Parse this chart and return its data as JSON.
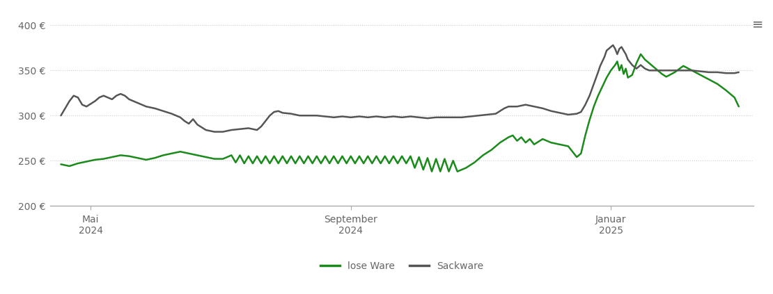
{
  "background_color": "#ffffff",
  "lose_ware_color": "#1a8a1a",
  "sackware_color": "#555555",
  "tick_color": "#666666",
  "grid_color": "#cccccc",
  "ylim": [
    200,
    415
  ],
  "yticks": [
    200,
    250,
    300,
    350,
    400
  ],
  "ytick_labels": [
    "200 €",
    "250 €",
    "300 €",
    "350 €",
    "400 €"
  ],
  "legend_labels": [
    "lose Ware",
    "Sackware"
  ],
  "line_width": 1.8,
  "lose_ware_data": [
    [
      0,
      246
    ],
    [
      4,
      244
    ],
    [
      8,
      247
    ],
    [
      12,
      249
    ],
    [
      16,
      251
    ],
    [
      20,
      252
    ],
    [
      24,
      254
    ],
    [
      28,
      256
    ],
    [
      32,
      255
    ],
    [
      36,
      253
    ],
    [
      40,
      251
    ],
    [
      44,
      253
    ],
    [
      48,
      256
    ],
    [
      52,
      258
    ],
    [
      56,
      260
    ],
    [
      60,
      258
    ],
    [
      64,
      256
    ],
    [
      68,
      254
    ],
    [
      72,
      252
    ],
    [
      76,
      252
    ],
    [
      80,
      256
    ],
    [
      82,
      248
    ],
    [
      84,
      256
    ],
    [
      86,
      247
    ],
    [
      88,
      255
    ],
    [
      90,
      247
    ],
    [
      92,
      255
    ],
    [
      94,
      247
    ],
    [
      96,
      255
    ],
    [
      98,
      247
    ],
    [
      100,
      255
    ],
    [
      102,
      247
    ],
    [
      104,
      255
    ],
    [
      106,
      247
    ],
    [
      108,
      255
    ],
    [
      110,
      247
    ],
    [
      112,
      255
    ],
    [
      114,
      247
    ],
    [
      116,
      255
    ],
    [
      118,
      247
    ],
    [
      120,
      255
    ],
    [
      122,
      247
    ],
    [
      124,
      255
    ],
    [
      126,
      247
    ],
    [
      128,
      255
    ],
    [
      130,
      247
    ],
    [
      132,
      255
    ],
    [
      134,
      247
    ],
    [
      136,
      255
    ],
    [
      138,
      247
    ],
    [
      140,
      255
    ],
    [
      142,
      247
    ],
    [
      144,
      255
    ],
    [
      146,
      247
    ],
    [
      148,
      255
    ],
    [
      150,
      247
    ],
    [
      152,
      255
    ],
    [
      154,
      247
    ],
    [
      156,
      255
    ],
    [
      158,
      247
    ],
    [
      160,
      255
    ],
    [
      162,
      247
    ],
    [
      164,
      255
    ],
    [
      166,
      242
    ],
    [
      168,
      254
    ],
    [
      170,
      240
    ],
    [
      172,
      253
    ],
    [
      174,
      238
    ],
    [
      176,
      252
    ],
    [
      178,
      238
    ],
    [
      180,
      252
    ],
    [
      182,
      238
    ],
    [
      184,
      250
    ],
    [
      186,
      238
    ],
    [
      188,
      240
    ],
    [
      190,
      242
    ],
    [
      194,
      248
    ],
    [
      198,
      256
    ],
    [
      202,
      262
    ],
    [
      206,
      270
    ],
    [
      210,
      276
    ],
    [
      212,
      278
    ],
    [
      214,
      272
    ],
    [
      216,
      276
    ],
    [
      218,
      270
    ],
    [
      220,
      274
    ],
    [
      222,
      268
    ],
    [
      226,
      274
    ],
    [
      230,
      270
    ],
    [
      234,
      268
    ],
    [
      238,
      266
    ],
    [
      240,
      260
    ],
    [
      242,
      254
    ],
    [
      244,
      258
    ],
    [
      246,
      278
    ],
    [
      248,
      295
    ],
    [
      250,
      310
    ],
    [
      252,
      322
    ],
    [
      254,
      332
    ],
    [
      256,
      342
    ],
    [
      258,
      350
    ],
    [
      260,
      356
    ],
    [
      261,
      360
    ],
    [
      262,
      350
    ],
    [
      263,
      356
    ],
    [
      264,
      346
    ],
    [
      265,
      352
    ],
    [
      266,
      342
    ],
    [
      268,
      345
    ],
    [
      270,
      358
    ],
    [
      272,
      368
    ],
    [
      274,
      362
    ],
    [
      276,
      358
    ],
    [
      278,
      354
    ],
    [
      280,
      350
    ],
    [
      282,
      346
    ],
    [
      284,
      343
    ],
    [
      288,
      348
    ],
    [
      292,
      355
    ],
    [
      296,
      350
    ],
    [
      300,
      345
    ],
    [
      304,
      340
    ],
    [
      308,
      335
    ],
    [
      312,
      328
    ],
    [
      316,
      320
    ],
    [
      318,
      310
    ]
  ],
  "sackware_data": [
    [
      0,
      300
    ],
    [
      2,
      308
    ],
    [
      4,
      316
    ],
    [
      6,
      322
    ],
    [
      8,
      320
    ],
    [
      10,
      312
    ],
    [
      12,
      310
    ],
    [
      14,
      313
    ],
    [
      16,
      316
    ],
    [
      18,
      320
    ],
    [
      20,
      322
    ],
    [
      22,
      320
    ],
    [
      24,
      318
    ],
    [
      26,
      322
    ],
    [
      28,
      324
    ],
    [
      30,
      322
    ],
    [
      32,
      318
    ],
    [
      36,
      314
    ],
    [
      40,
      310
    ],
    [
      44,
      308
    ],
    [
      48,
      305
    ],
    [
      52,
      302
    ],
    [
      56,
      298
    ],
    [
      58,
      294
    ],
    [
      60,
      291
    ],
    [
      62,
      296
    ],
    [
      64,
      290
    ],
    [
      66,
      287
    ],
    [
      68,
      284
    ],
    [
      72,
      282
    ],
    [
      76,
      282
    ],
    [
      80,
      284
    ],
    [
      84,
      285
    ],
    [
      88,
      286
    ],
    [
      92,
      284
    ],
    [
      94,
      288
    ],
    [
      96,
      294
    ],
    [
      98,
      300
    ],
    [
      100,
      304
    ],
    [
      102,
      305
    ],
    [
      104,
      303
    ],
    [
      108,
      302
    ],
    [
      112,
      300
    ],
    [
      116,
      300
    ],
    [
      120,
      300
    ],
    [
      124,
      299
    ],
    [
      128,
      298
    ],
    [
      132,
      299
    ],
    [
      136,
      298
    ],
    [
      140,
      299
    ],
    [
      144,
      298
    ],
    [
      148,
      299
    ],
    [
      152,
      298
    ],
    [
      156,
      299
    ],
    [
      160,
      298
    ],
    [
      164,
      299
    ],
    [
      168,
      298
    ],
    [
      172,
      297
    ],
    [
      176,
      298
    ],
    [
      180,
      298
    ],
    [
      184,
      298
    ],
    [
      188,
      298
    ],
    [
      192,
      299
    ],
    [
      196,
      300
    ],
    [
      200,
      301
    ],
    [
      204,
      302
    ],
    [
      206,
      305
    ],
    [
      208,
      308
    ],
    [
      210,
      310
    ],
    [
      214,
      310
    ],
    [
      218,
      312
    ],
    [
      222,
      310
    ],
    [
      226,
      308
    ],
    [
      230,
      305
    ],
    [
      234,
      303
    ],
    [
      238,
      301
    ],
    [
      242,
      302
    ],
    [
      244,
      304
    ],
    [
      246,
      312
    ],
    [
      248,
      322
    ],
    [
      250,
      335
    ],
    [
      252,
      348
    ],
    [
      253,
      355
    ],
    [
      254,
      360
    ],
    [
      255,
      365
    ],
    [
      256,
      372
    ],
    [
      257,
      374
    ],
    [
      258,
      376
    ],
    [
      259,
      378
    ],
    [
      260,
      374
    ],
    [
      261,
      368
    ],
    [
      262,
      374
    ],
    [
      263,
      376
    ],
    [
      264,
      372
    ],
    [
      265,
      368
    ],
    [
      266,
      362
    ],
    [
      268,
      356
    ],
    [
      270,
      352
    ],
    [
      272,
      356
    ],
    [
      274,
      352
    ],
    [
      276,
      350
    ],
    [
      278,
      350
    ],
    [
      280,
      350
    ],
    [
      284,
      350
    ],
    [
      288,
      350
    ],
    [
      292,
      350
    ],
    [
      296,
      350
    ],
    [
      300,
      349
    ],
    [
      304,
      348
    ],
    [
      308,
      348
    ],
    [
      312,
      347
    ],
    [
      316,
      347
    ],
    [
      318,
      348
    ]
  ],
  "x_tick_positions_days": [
    14,
    136,
    258
  ],
  "x_tick_labels": [
    "Mai\n2024",
    "September\n2024",
    "Januar\n2025"
  ],
  "xlim": [
    -5,
    325
  ]
}
